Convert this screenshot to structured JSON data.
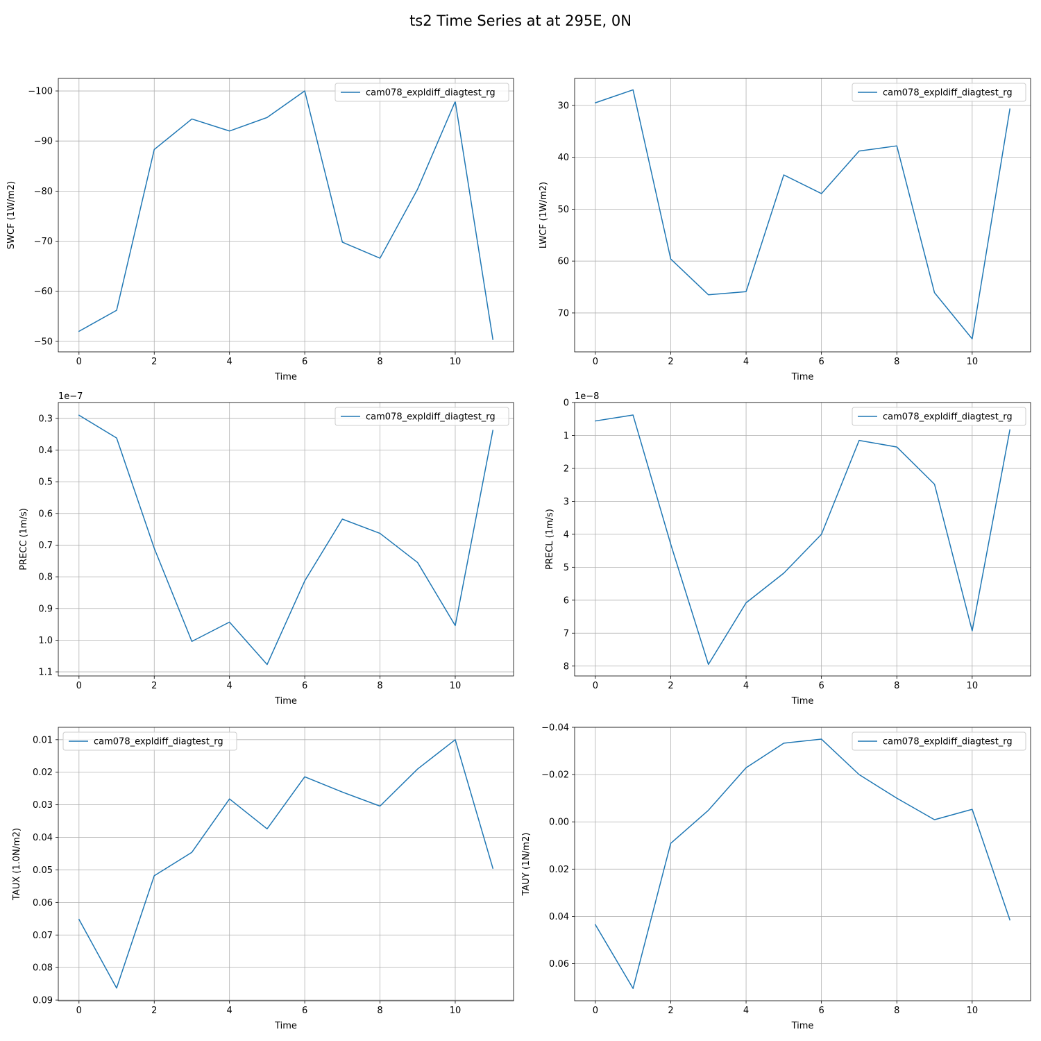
{
  "figure": {
    "title": "ts2 Time Series at at 295E, 0N"
  },
  "colors": {
    "series": "#1f77b4",
    "grid": "#b0b0b0"
  },
  "chart_data": [
    {
      "type": "line",
      "xlabel": "Time",
      "ylabel": "SWCF (1W/m2)",
      "y_inverted": true,
      "grid": true,
      "legend_position": "upper right",
      "xlim": [
        -0.55,
        11.55
      ],
      "ylim": [
        -47.9,
        -102.5
      ],
      "x_ticks": [
        0,
        2,
        4,
        6,
        8,
        10
      ],
      "x_tick_labels": [
        "0",
        "2",
        "4",
        "6",
        "8",
        "10"
      ],
      "y_ticks": [
        -100,
        -90,
        -80,
        -70,
        -60,
        -50
      ],
      "y_tick_labels": [
        "−100",
        "−90",
        "−80",
        "−70",
        "−60",
        "−50"
      ],
      "offset_text": "",
      "series": [
        {
          "name": "cam078_expldiff_diagtest_rg",
          "x": [
            0,
            1,
            2,
            3,
            4,
            5,
            6,
            7,
            8,
            9,
            10,
            11
          ],
          "values": [
            -52,
            -56.2,
            -88.3,
            -94.4,
            -92.0,
            -94.7,
            -100.0,
            -69.8,
            -66.6,
            -80.4,
            -97.9,
            -50.4
          ]
        }
      ]
    },
    {
      "type": "line",
      "xlabel": "Time",
      "ylabel": "LWCF (1W/m2)",
      "y_inverted": true,
      "grid": true,
      "legend_position": "upper right",
      "xlim": [
        -0.55,
        11.55
      ],
      "ylim": [
        77.5,
        24.8
      ],
      "x_ticks": [
        0,
        2,
        4,
        6,
        8,
        10
      ],
      "x_tick_labels": [
        "0",
        "2",
        "4",
        "6",
        "8",
        "10"
      ],
      "y_ticks": [
        30,
        40,
        50,
        60,
        70
      ],
      "y_tick_labels": [
        "30",
        "40",
        "50",
        "60",
        "70"
      ],
      "offset_text": "",
      "series": [
        {
          "name": "cam078_expldiff_diagtest_rg",
          "x": [
            0,
            1,
            2,
            3,
            4,
            5,
            6,
            7,
            8,
            9,
            10,
            11
          ],
          "values": [
            29.5,
            27.0,
            59.6,
            66.5,
            65.9,
            43.4,
            47.0,
            38.8,
            37.8,
            66.1,
            75.0,
            30.7
          ]
        }
      ]
    },
    {
      "type": "line",
      "xlabel": "Time",
      "ylabel": "PRECC (1m/s)",
      "y_inverted": true,
      "grid": true,
      "legend_position": "upper right",
      "xlim": [
        -0.55,
        11.55
      ],
      "ylim": [
        1.113,
        0.25
      ],
      "x_ticks": [
        0,
        2,
        4,
        6,
        8,
        10
      ],
      "x_tick_labels": [
        "0",
        "2",
        "4",
        "6",
        "8",
        "10"
      ],
      "y_ticks": [
        0.3,
        0.4,
        0.5,
        0.6,
        0.7,
        0.8,
        0.9,
        1.0,
        1.1
      ],
      "y_tick_labels": [
        "0.3",
        "0.4",
        "0.5",
        "0.6",
        "0.7",
        "0.8",
        "0.9",
        "1.0",
        "1.1"
      ],
      "offset_text": "1e−7",
      "series": [
        {
          "name": "cam078_expldiff_diagtest_rg",
          "x": [
            0,
            1,
            2,
            3,
            4,
            5,
            6,
            7,
            8,
            9,
            10,
            11
          ],
          "values": [
            0.29,
            0.362,
            0.71,
            1.004,
            0.943,
            1.077,
            0.813,
            0.618,
            0.663,
            0.755,
            0.954,
            0.338
          ]
        }
      ]
    },
    {
      "type": "line",
      "xlabel": "Time",
      "ylabel": "PRECL (1m/s)",
      "y_inverted": true,
      "grid": true,
      "legend_position": "upper right",
      "xlim": [
        -0.55,
        11.55
      ],
      "ylim": [
        8.3,
        0
      ],
      "x_ticks": [
        0,
        2,
        4,
        6,
        8,
        10
      ],
      "x_tick_labels": [
        "0",
        "2",
        "4",
        "6",
        "8",
        "10"
      ],
      "y_ticks": [
        0,
        1,
        2,
        3,
        4,
        5,
        6,
        7,
        8
      ],
      "y_tick_labels": [
        "0",
        "1",
        "2",
        "3",
        "4",
        "5",
        "6",
        "7",
        "8"
      ],
      "offset_text": "1e−8",
      "series": [
        {
          "name": "cam078_expldiff_diagtest_rg",
          "x": [
            0,
            1,
            2,
            3,
            4,
            5,
            6,
            7,
            8,
            9,
            10,
            11
          ],
          "values": [
            0.56,
            0.38,
            4.3,
            7.95,
            6.08,
            5.18,
            4.0,
            1.15,
            1.35,
            2.48,
            6.93,
            0.83
          ]
        }
      ]
    },
    {
      "type": "line",
      "xlabel": "Time",
      "ylabel": "TAUX (1.0N/m2)",
      "y_inverted": true,
      "grid": true,
      "legend_position": "upper left",
      "xlim": [
        -0.55,
        11.55
      ],
      "ylim": [
        0.0902,
        0.0062
      ],
      "x_ticks": [
        0,
        2,
        4,
        6,
        8,
        10
      ],
      "x_tick_labels": [
        "0",
        "2",
        "4",
        "6",
        "8",
        "10"
      ],
      "y_ticks": [
        0.01,
        0.02,
        0.03,
        0.04,
        0.05,
        0.06,
        0.07,
        0.08,
        0.09
      ],
      "y_tick_labels": [
        "0.01",
        "0.02",
        "0.03",
        "0.04",
        "0.05",
        "0.06",
        "0.07",
        "0.08",
        "0.09"
      ],
      "offset_text": "",
      "series": [
        {
          "name": "cam078_expldiff_diagtest_rg",
          "x": [
            0,
            1,
            2,
            3,
            4,
            5,
            6,
            7,
            8,
            9,
            10,
            11
          ],
          "values": [
            0.0652,
            0.0863,
            0.0518,
            0.0446,
            0.0282,
            0.0374,
            0.0214,
            0.0261,
            0.0304,
            0.019,
            0.01,
            0.0495
          ]
        }
      ]
    },
    {
      "type": "line",
      "xlabel": "Time",
      "ylabel": "TAUY (1N/m2)",
      "y_inverted": true,
      "grid": true,
      "legend_position": "upper right",
      "xlim": [
        -0.55,
        11.55
      ],
      "ylim": [
        0.0757,
        -0.04
      ],
      "x_ticks": [
        0,
        2,
        4,
        6,
        8,
        10
      ],
      "x_tick_labels": [
        "0",
        "2",
        "4",
        "6",
        "8",
        "10"
      ],
      "y_ticks": [
        -0.04,
        -0.02,
        0.0,
        0.02,
        0.04,
        0.06
      ],
      "y_tick_labels": [
        "−0.04",
        "−0.02",
        "0.00",
        "0.02",
        "0.04",
        "0.06"
      ],
      "offset_text": "",
      "series": [
        {
          "name": "cam078_expldiff_diagtest_rg",
          "x": [
            0,
            1,
            2,
            3,
            4,
            5,
            6,
            7,
            8,
            9,
            10,
            11
          ],
          "values": [
            0.0435,
            0.0705,
            0.0091,
            -0.0049,
            -0.0229,
            -0.0333,
            -0.035,
            -0.02,
            -0.01,
            -0.0009,
            -0.0053,
            0.0415
          ]
        }
      ]
    }
  ]
}
